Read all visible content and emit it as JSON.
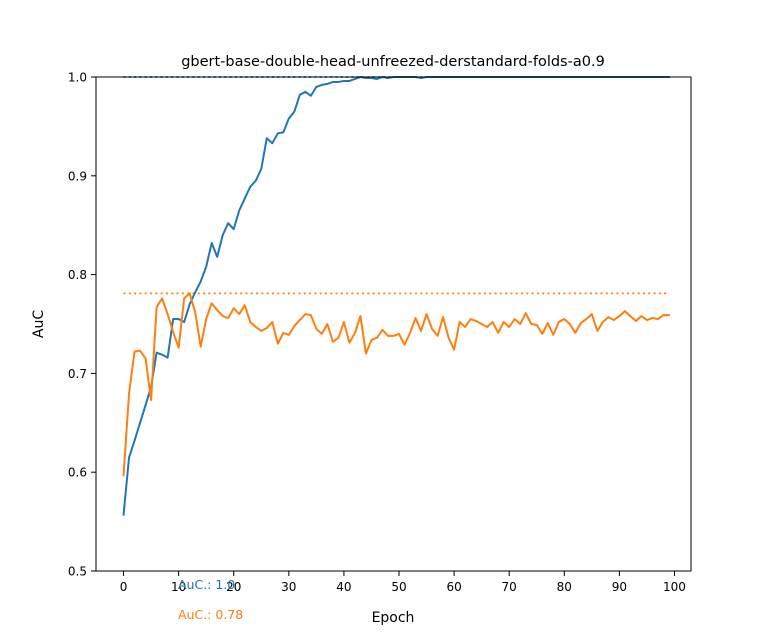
{
  "chart_data": {
    "type": "line",
    "title": "gbert-base-double-head-unfreezed-derstandard-folds-a0.9",
    "xlabel": "Epoch",
    "ylabel": "AuC",
    "xlim": [
      -5,
      103
    ],
    "ylim": [
      0.5,
      1.0
    ],
    "xticks": [
      0,
      10,
      20,
      30,
      40,
      50,
      60,
      70,
      80,
      90,
      100
    ],
    "yticks": [
      0.5,
      0.6,
      0.7,
      0.8,
      0.9,
      1.0
    ],
    "xtick_labels": [
      "0",
      "10",
      "20",
      "30",
      "40",
      "50",
      "60",
      "70",
      "80",
      "90",
      "100"
    ],
    "ytick_labels": [
      "0.5",
      "0.6",
      "0.7",
      "0.8",
      "0.9",
      "1.0"
    ],
    "grid": false,
    "x": [
      0,
      1,
      2,
      3,
      4,
      5,
      6,
      7,
      8,
      9,
      10,
      11,
      12,
      13,
      14,
      15,
      16,
      17,
      18,
      19,
      20,
      21,
      22,
      23,
      24,
      25,
      26,
      27,
      28,
      29,
      30,
      31,
      32,
      33,
      34,
      35,
      36,
      37,
      38,
      39,
      40,
      41,
      42,
      43,
      44,
      45,
      46,
      47,
      48,
      49,
      50,
      51,
      52,
      53,
      54,
      55,
      56,
      57,
      58,
      59,
      60,
      61,
      62,
      63,
      64,
      65,
      66,
      67,
      68,
      69,
      70,
      71,
      72,
      73,
      74,
      75,
      76,
      77,
      78,
      79,
      80,
      81,
      82,
      83,
      84,
      85,
      86,
      87,
      88,
      89,
      90,
      91,
      92,
      93,
      94,
      95,
      96,
      97,
      98,
      99
    ],
    "series": [
      {
        "color": "#1f77b4",
        "values": [
          0.557,
          0.615,
          0.632,
          0.65,
          0.668,
          0.686,
          0.721,
          0.719,
          0.716,
          0.755,
          0.755,
          0.752,
          0.77,
          0.782,
          0.793,
          0.808,
          0.832,
          0.818,
          0.84,
          0.852,
          0.846,
          0.865,
          0.877,
          0.889,
          0.895,
          0.907,
          0.938,
          0.933,
          0.943,
          0.944,
          0.958,
          0.965,
          0.982,
          0.985,
          0.981,
          0.99,
          0.992,
          0.993,
          0.995,
          0.995,
          0.996,
          0.996,
          0.998,
          1.0,
          0.999,
          0.999,
          0.998,
          1.0,
          0.999,
          1.0,
          1.0,
          1.0,
          1.0,
          1.0,
          0.999,
          1.0,
          1.0,
          1.0,
          1.0,
          1.0,
          1.0,
          1.0,
          1.0,
          1.0,
          1.0,
          1.0,
          1.0,
          1.0,
          1.0,
          1.0,
          1.0,
          1.0,
          1.0,
          1.0,
          1.0,
          1.0,
          1.0,
          1.0,
          1.0,
          1.0,
          1.0,
          1.0,
          1.0,
          1.0,
          1.0,
          1.0,
          1.0,
          1.0,
          1.0,
          1.0,
          1.0,
          1.0,
          1.0,
          1.0,
          1.0,
          1.0,
          1.0,
          1.0,
          1.0,
          1.0
        ]
      },
      {
        "color": "#ff7f0e",
        "values": [
          0.597,
          0.68,
          0.722,
          0.723,
          0.715,
          0.673,
          0.767,
          0.776,
          0.76,
          0.742,
          0.726,
          0.776,
          0.781,
          0.762,
          0.727,
          0.755,
          0.771,
          0.764,
          0.758,
          0.756,
          0.766,
          0.76,
          0.769,
          0.752,
          0.747,
          0.743,
          0.746,
          0.752,
          0.73,
          0.741,
          0.739,
          0.748,
          0.754,
          0.76,
          0.759,
          0.745,
          0.74,
          0.75,
          0.732,
          0.736,
          0.752,
          0.731,
          0.741,
          0.758,
          0.72,
          0.734,
          0.736,
          0.744,
          0.738,
          0.738,
          0.74,
          0.729,
          0.741,
          0.756,
          0.743,
          0.76,
          0.745,
          0.738,
          0.757,
          0.736,
          0.724,
          0.752,
          0.747,
          0.755,
          0.753,
          0.75,
          0.747,
          0.752,
          0.741,
          0.752,
          0.747,
          0.755,
          0.75,
          0.761,
          0.75,
          0.749,
          0.74,
          0.751,
          0.739,
          0.752,
          0.755,
          0.75,
          0.741,
          0.751,
          0.755,
          0.76,
          0.743,
          0.752,
          0.757,
          0.754,
          0.758,
          0.763,
          0.758,
          0.753,
          0.758,
          0.754,
          0.756,
          0.755,
          0.759,
          0.759
        ]
      }
    ],
    "hlines": [
      {
        "y": 1.0,
        "color": "#1f77b4",
        "style": "dotted"
      },
      {
        "y": 0.781,
        "color": "#ff7f0e",
        "style": "dotted"
      }
    ],
    "annotations": [
      {
        "text": "AuC.: 1.0",
        "color": "#1f77b4"
      },
      {
        "text": "AuC.: 0.78",
        "color": "#ff7f0e"
      }
    ]
  }
}
